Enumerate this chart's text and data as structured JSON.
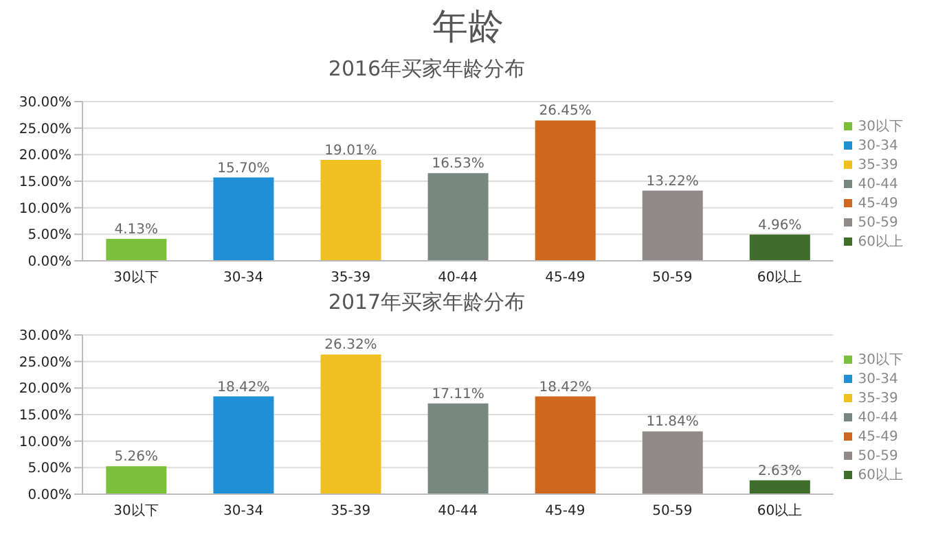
{
  "chart_data": [
    {
      "type": "bar",
      "title": "年龄",
      "subtitle": "2016年买家年龄分布",
      "stacked": true,
      "categories": [
        "30以下",
        "30-34",
        "35-39",
        "40-44",
        "45-49",
        "50-59",
        "60以上"
      ],
      "series": [
        {
          "name": "30以下",
          "color": "#7cbf3a",
          "values": [
            4.13,
            null,
            null,
            null,
            null,
            null,
            null
          ],
          "value_labels": [
            "4.13%",
            null,
            null,
            null,
            null,
            null,
            null
          ]
        },
        {
          "name": "30-34",
          "color": "#1f8fd6",
          "values": [
            null,
            15.7,
            null,
            null,
            null,
            null,
            null
          ],
          "value_labels": [
            null,
            "15.70%",
            null,
            null,
            null,
            null,
            null
          ]
        },
        {
          "name": "35-39",
          "color": "#f0c020",
          "values": [
            null,
            null,
            19.01,
            null,
            null,
            null,
            null
          ],
          "value_labels": [
            null,
            null,
            "19.01%",
            null,
            null,
            null,
            null
          ]
        },
        {
          "name": "40-44",
          "color": "#78877f",
          "values": [
            null,
            null,
            null,
            16.53,
            null,
            null,
            null
          ],
          "value_labels": [
            null,
            null,
            null,
            "16.53%",
            null,
            null,
            null
          ]
        },
        {
          "name": "45-49",
          "color": "#d0671f",
          "values": [
            null,
            null,
            null,
            null,
            26.45,
            null,
            null
          ],
          "value_labels": [
            null,
            null,
            null,
            null,
            "26.45%",
            null,
            null
          ]
        },
        {
          "name": "50-59",
          "color": "#928a88",
          "values": [
            null,
            null,
            null,
            null,
            null,
            13.22,
            null
          ],
          "value_labels": [
            null,
            null,
            null,
            null,
            null,
            "13.22%",
            null
          ]
        },
        {
          "name": "60以上",
          "color": "#3f6e2c",
          "values": [
            null,
            null,
            null,
            null,
            null,
            null,
            4.96
          ],
          "value_labels": [
            null,
            null,
            null,
            null,
            null,
            null,
            "4.96%"
          ]
        }
      ],
      "ylim": [
        0,
        30
      ],
      "yticks": [
        {
          "value": 0,
          "label": "0.00%"
        },
        {
          "value": 5,
          "label": "5.00%"
        },
        {
          "value": 10,
          "label": "10.00%"
        },
        {
          "value": 15,
          "label": "15.00%"
        },
        {
          "value": 20,
          "label": "20.00%"
        },
        {
          "value": 25,
          "label": "25.00%"
        },
        {
          "value": 30,
          "label": "30.00%"
        }
      ],
      "grid": "y",
      "legend": "right"
    },
    {
      "type": "bar",
      "title": "2017年买家年龄分布",
      "stacked": true,
      "categories": [
        "30以下",
        "30-34",
        "35-39",
        "40-44",
        "45-49",
        "50-59",
        "60以上"
      ],
      "series": [
        {
          "name": "30以下",
          "color": "#7cbf3a",
          "values": [
            5.26,
            null,
            null,
            null,
            null,
            null,
            null
          ],
          "value_labels": [
            "5.26%",
            null,
            null,
            null,
            null,
            null,
            null
          ]
        },
        {
          "name": "30-34",
          "color": "#1f8fd6",
          "values": [
            null,
            18.42,
            null,
            null,
            null,
            null,
            null
          ],
          "value_labels": [
            null,
            "18.42%",
            null,
            null,
            null,
            null,
            null
          ]
        },
        {
          "name": "35-39",
          "color": "#f0c020",
          "values": [
            null,
            null,
            26.32,
            null,
            null,
            null,
            null
          ],
          "value_labels": [
            null,
            null,
            "26.32%",
            null,
            null,
            null,
            null
          ]
        },
        {
          "name": "40-44",
          "color": "#78877f",
          "values": [
            null,
            null,
            null,
            17.11,
            null,
            null,
            null
          ],
          "value_labels": [
            null,
            null,
            null,
            "17.11%",
            null,
            null,
            null
          ]
        },
        {
          "name": "45-49",
          "color": "#d0671f",
          "values": [
            null,
            null,
            null,
            null,
            18.42,
            null,
            null
          ],
          "value_labels": [
            null,
            null,
            null,
            null,
            "18.42%",
            null,
            null
          ]
        },
        {
          "name": "50-59",
          "color": "#928a88",
          "values": [
            null,
            null,
            null,
            null,
            null,
            11.84,
            null
          ],
          "value_labels": [
            null,
            null,
            null,
            null,
            null,
            "11.84%",
            null
          ]
        },
        {
          "name": "60以上",
          "color": "#3f6e2c",
          "values": [
            null,
            null,
            null,
            null,
            null,
            null,
            2.63
          ],
          "value_labels": [
            null,
            null,
            null,
            null,
            null,
            null,
            "2.63%"
          ]
        }
      ],
      "ylim": [
        0,
        30
      ],
      "yticks": [
        {
          "value": 0,
          "label": "0.00%"
        },
        {
          "value": 5,
          "label": "5.00%"
        },
        {
          "value": 10,
          "label": "10.00%"
        },
        {
          "value": 15,
          "label": "15.00%"
        },
        {
          "value": 20,
          "label": "20.00%"
        },
        {
          "value": 25,
          "label": "25.00%"
        },
        {
          "value": 30,
          "label": "30.00%"
        }
      ],
      "grid": "y",
      "legend": "right"
    }
  ]
}
